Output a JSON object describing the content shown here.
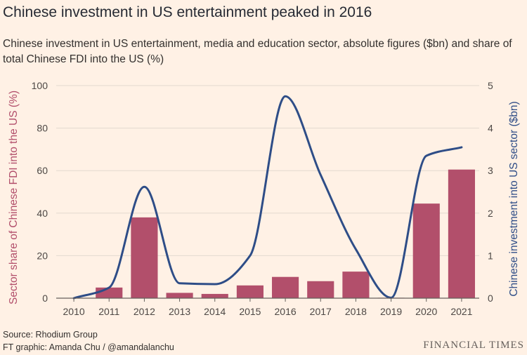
{
  "header": {
    "title": "Chinese investment in US entertainment peaked in 2016",
    "subtitle": "Chinese investment in US entertainment, media and education sector, absolute figures ($bn) and share of total Chinese FDI into the US (%)"
  },
  "footer": {
    "source": "Source: Rhodium Group",
    "credit": "FT graphic: Amanda Chu / @amandalanchu",
    "brand": "FINANCIAL TIMES"
  },
  "colors": {
    "background": "#fff1e5",
    "bars": "#b24f6b",
    "line": "#2e4d87",
    "grid": "#e3d9cf",
    "text": "#33302e"
  },
  "chart_data": {
    "type": "bar",
    "categories": [
      "2010",
      "2011",
      "2012",
      "2013",
      "2014",
      "2015",
      "2016",
      "2017",
      "2018",
      "2019",
      "2020",
      "2021"
    ],
    "series": [
      {
        "type": "bar",
        "axis": "left",
        "values": [
          0,
          5,
          38,
          2.5,
          2,
          6,
          10,
          8,
          12.5,
          0.2,
          44.5,
          60.5
        ]
      },
      {
        "type": "line",
        "axis": "right",
        "values": [
          0,
          0.25,
          2.62,
          0.35,
          0.33,
          1.0,
          4.75,
          2.9,
          1.15,
          0.01,
          3.35,
          3.55
        ]
      }
    ],
    "y_left": {
      "label": "Sector share of Chinese FDI into the US (%)",
      "ylim": [
        0,
        100
      ],
      "ticks": [
        0,
        20,
        40,
        60,
        80,
        100
      ]
    },
    "y_right": {
      "label": "Chinese investment into US sector ($bn)",
      "ylim": [
        0,
        5
      ],
      "ticks": [
        0,
        1,
        2,
        3,
        4,
        5
      ]
    },
    "grid": true,
    "legend": "none"
  }
}
